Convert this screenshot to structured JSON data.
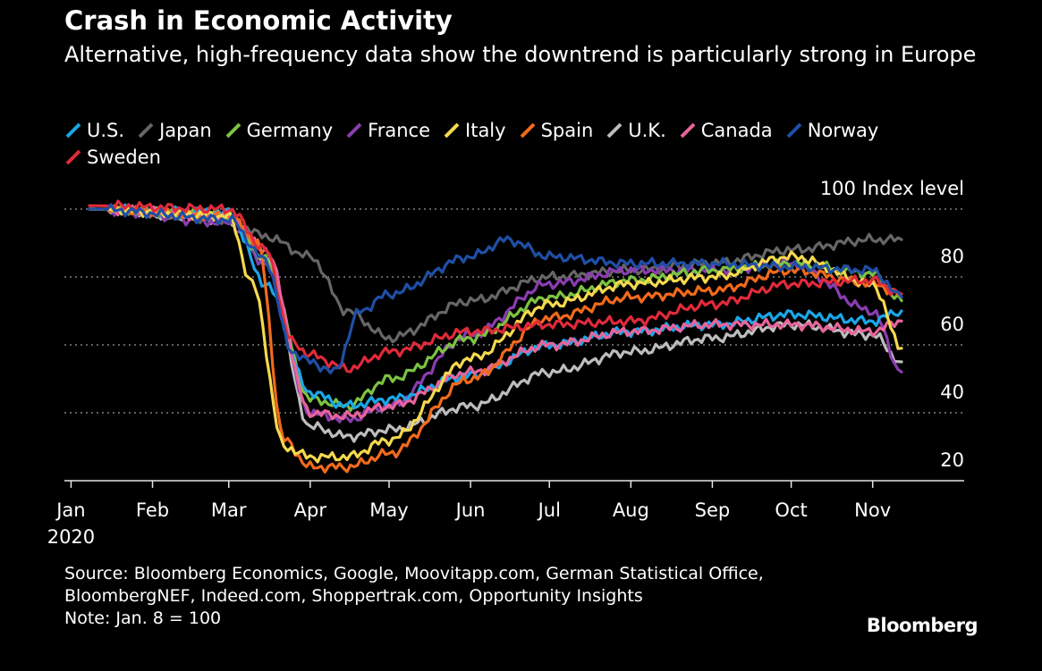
{
  "title": "Crash in Economic Activity",
  "subtitle": "Alternative, high-frequency data show the downtrend is particularly strong in Europe",
  "source_lines": [
    "Source: Bloomberg Economics, Google, Moovitapp.com, German Statistical Office,",
    "BloombergNEF, Indeed.com, Shoppertrak.com, Opportunity Insights",
    "Note: Jan. 8 = 100"
  ],
  "brand": "Bloomberg",
  "chart_data": {
    "type": "line",
    "title": "Crash in Economic Activity",
    "ylabel": "Index level",
    "ylim": [
      20,
      100
    ],
    "yticks": [
      20,
      40,
      60,
      80,
      100
    ],
    "ytick_labels": [
      "20",
      "40",
      "60",
      "80",
      "100"
    ],
    "top_tick_caption": "100 Index level",
    "x_tick_labels": [
      "Jan",
      "Feb",
      "Mar",
      "Apr",
      "May",
      "Jun",
      "Jul",
      "Aug",
      "Sep",
      "Oct",
      "Nov"
    ],
    "x_year_label": "2020",
    "xlim": [
      "2020-01-08",
      "2020-11-12"
    ],
    "grid": true,
    "legend_position": "top-left",
    "series": [
      {
        "name": "U.S.",
        "color": "#1aa7e8",
        "x": [
          "2020-01-08",
          "2020-03-01",
          "2020-03-15",
          "2020-04-01",
          "2020-04-15",
          "2020-05-01",
          "2020-06-01",
          "2020-07-01",
          "2020-08-01",
          "2020-09-01",
          "2020-10-01",
          "2020-11-01",
          "2020-11-12"
        ],
        "y": [
          100,
          99,
          78,
          46,
          42,
          44,
          51,
          60,
          64,
          66,
          69,
          67,
          70
        ]
      },
      {
        "name": "Japan",
        "color": "#666666",
        "x": [
          "2020-01-08",
          "2020-03-01",
          "2020-03-15",
          "2020-04-01",
          "2020-04-15",
          "2020-05-01",
          "2020-06-01",
          "2020-07-01",
          "2020-08-01",
          "2020-09-01",
          "2020-10-01",
          "2020-11-01",
          "2020-11-12"
        ],
        "y": [
          100,
          97,
          92,
          86,
          70,
          62,
          73,
          80,
          82,
          84,
          88,
          91,
          91
        ]
      },
      {
        "name": "Germany",
        "color": "#7cc242",
        "x": [
          "2020-01-08",
          "2020-03-01",
          "2020-03-15",
          "2020-04-01",
          "2020-04-15",
          "2020-05-01",
          "2020-06-01",
          "2020-07-01",
          "2020-08-01",
          "2020-09-01",
          "2020-10-01",
          "2020-11-01",
          "2020-11-12"
        ],
        "y": [
          100,
          98,
          85,
          44,
          42,
          50,
          62,
          74,
          79,
          82,
          84,
          81,
          73
        ]
      },
      {
        "name": "France",
        "color": "#8a3db0",
        "x": [
          "2020-01-08",
          "2020-03-01",
          "2020-03-15",
          "2020-04-01",
          "2020-04-15",
          "2020-05-01",
          "2020-06-01",
          "2020-07-01",
          "2020-08-01",
          "2020-09-01",
          "2020-10-01",
          "2020-11-01",
          "2020-11-12"
        ],
        "y": [
          100,
          96,
          84,
          40,
          38,
          42,
          63,
          78,
          82,
          82,
          84,
          70,
          52
        ]
      },
      {
        "name": "Italy",
        "color": "#f5d94e",
        "x": [
          "2020-01-08",
          "2020-03-01",
          "2020-03-10",
          "2020-03-22",
          "2020-04-01",
          "2020-04-15",
          "2020-05-01",
          "2020-06-01",
          "2020-07-01",
          "2020-08-01",
          "2020-09-01",
          "2020-10-01",
          "2020-11-01",
          "2020-11-12"
        ],
        "y": [
          100,
          98,
          78,
          30,
          27,
          27,
          32,
          56,
          72,
          78,
          80,
          86,
          78,
          59
        ]
      },
      {
        "name": "Spain",
        "color": "#f26a1b",
        "x": [
          "2020-01-08",
          "2020-03-01",
          "2020-03-12",
          "2020-03-22",
          "2020-04-01",
          "2020-04-15",
          "2020-05-01",
          "2020-06-01",
          "2020-07-01",
          "2020-08-01",
          "2020-09-01",
          "2020-10-01",
          "2020-11-01",
          "2020-11-12"
        ],
        "y": [
          100,
          98,
          90,
          32,
          24,
          24,
          28,
          50,
          68,
          74,
          76,
          82,
          78,
          75
        ]
      },
      {
        "name": "U.K.",
        "color": "#bdbdbd",
        "x": [
          "2020-01-08",
          "2020-03-01",
          "2020-03-15",
          "2020-04-01",
          "2020-04-15",
          "2020-05-01",
          "2020-06-01",
          "2020-07-01",
          "2020-08-01",
          "2020-09-01",
          "2020-10-01",
          "2020-11-01",
          "2020-11-12"
        ],
        "y": [
          100,
          97,
          85,
          36,
          33,
          35,
          42,
          52,
          58,
          62,
          66,
          63,
          55
        ]
      },
      {
        "name": "Canada",
        "color": "#e8649c",
        "x": [
          "2020-01-08",
          "2020-03-01",
          "2020-03-15",
          "2020-04-01",
          "2020-04-15",
          "2020-05-01",
          "2020-06-01",
          "2020-07-01",
          "2020-08-01",
          "2020-09-01",
          "2020-10-01",
          "2020-11-01",
          "2020-11-12"
        ],
        "y": [
          100,
          98,
          88,
          40,
          39,
          42,
          52,
          60,
          64,
          66,
          66,
          64,
          67
        ]
      },
      {
        "name": "Norway",
        "color": "#1f4fa6",
        "x": [
          "2020-01-08",
          "2020-03-01",
          "2020-03-15",
          "2020-03-25",
          "2020-04-01",
          "2020-04-10",
          "2020-04-20",
          "2020-05-01",
          "2020-06-01",
          "2020-06-15",
          "2020-07-01",
          "2020-08-01",
          "2020-09-01",
          "2020-10-01",
          "2020-11-01",
          "2020-11-12"
        ],
        "y": [
          100,
          97,
          85,
          58,
          55,
          52,
          70,
          75,
          86,
          91,
          86,
          84,
          84,
          83,
          82,
          74
        ]
      },
      {
        "name": "Sweden",
        "color": "#e02a3a",
        "x": [
          "2020-01-08",
          "2020-03-01",
          "2020-03-15",
          "2020-03-25",
          "2020-04-01",
          "2020-04-15",
          "2020-05-01",
          "2020-06-01",
          "2020-07-01",
          "2020-08-01",
          "2020-09-01",
          "2020-10-01",
          "2020-11-01",
          "2020-11-12"
        ],
        "y": [
          101,
          100,
          88,
          61,
          57,
          53,
          58,
          64,
          66,
          67,
          72,
          78,
          79,
          75
        ]
      }
    ]
  }
}
